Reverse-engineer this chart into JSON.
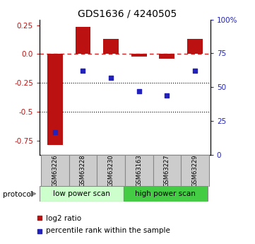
{
  "title": "GDS1636 / 4240505",
  "samples": [
    "GSM63226",
    "GSM63228",
    "GSM63230",
    "GSM63163",
    "GSM63227",
    "GSM63229"
  ],
  "log2_ratio": [
    -0.79,
    0.235,
    0.13,
    -0.02,
    -0.04,
    0.13
  ],
  "percentile_rank": [
    17,
    62,
    57,
    47,
    44,
    62
  ],
  "ylim_left": [
    -0.875,
    0.3
  ],
  "ylim_right": [
    0,
    100
  ],
  "bar_color": "#bb1111",
  "dot_color": "#2222bb",
  "dashed_line_color": "#cc2222",
  "low_scan_color": "#ccffcc",
  "high_scan_color": "#44cc44",
  "sample_box_color": "#cccccc",
  "yticks_left": [
    0.25,
    0.0,
    -0.25,
    -0.5,
    -0.75
  ],
  "yticks_right": [
    100,
    75,
    50,
    25,
    0
  ],
  "dotted_lines": [
    -0.25,
    -0.5
  ],
  "legend_labels": [
    "log2 ratio",
    "percentile rank within the sample"
  ],
  "legend_colors": [
    "#bb1111",
    "#2222bb"
  ]
}
